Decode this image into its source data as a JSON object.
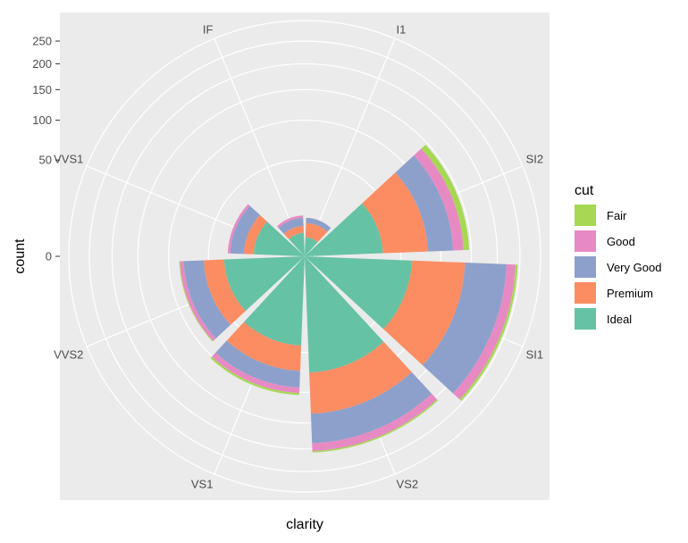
{
  "chart_data": {
    "type": "bar",
    "coord": "polar",
    "stacked": true,
    "xlabel": "clarity",
    "ylabel": "count",
    "categories": [
      "I1",
      "SI2",
      "SI1",
      "VS2",
      "VS1",
      "VVS2",
      "VVS1",
      "IF"
    ],
    "y_ticks": [
      "0",
      "50",
      "100",
      "150",
      "200",
      "250"
    ],
    "ylim": [
      0,
      300
    ],
    "legend": {
      "title": "cut",
      "position": "right"
    },
    "series": [
      {
        "name": "Ideal",
        "color": "#66C2A5",
        "values": [
          2,
          33,
          62,
          73,
          43,
          35,
          14,
          3
        ]
      },
      {
        "name": "Premium",
        "color": "#FC8D62",
        "values": [
          4,
          49,
          77,
          61,
          28,
          20,
          6,
          2
        ]
      },
      {
        "name": "Very Good",
        "color": "#8DA0CB",
        "values": [
          2,
          37,
          81,
          55,
          22,
          24,
          10,
          3
        ]
      },
      {
        "name": "Good",
        "color": "#E78AC3",
        "values": [
          0,
          17,
          20,
          16,
          8,
          5,
          2,
          1
        ]
      },
      {
        "name": "Fair",
        "color": "#A6D854",
        "values": [
          0,
          10,
          5,
          3,
          3,
          1,
          0,
          0
        ]
      }
    ],
    "legend_order": [
      "Fair",
      "Good",
      "Very Good",
      "Premium",
      "Ideal"
    ],
    "panel_background": "#EBEBEB",
    "grid_color": "#FFFFFF"
  }
}
